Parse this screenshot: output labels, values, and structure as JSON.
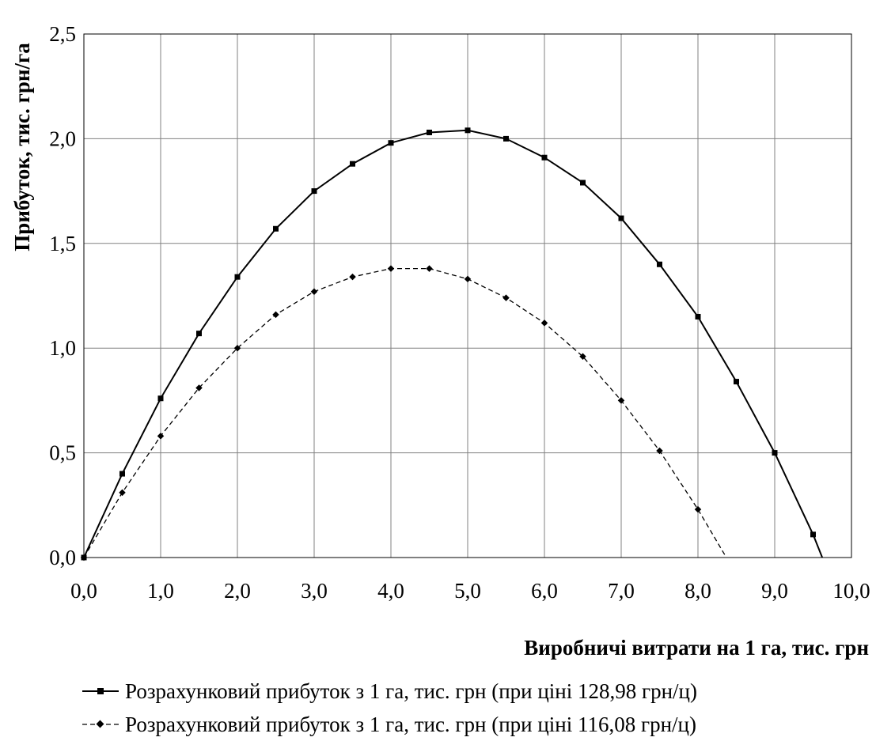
{
  "chart_data": {
    "type": "line",
    "title": "",
    "xlabel": "Виробничі витрати на 1 га, тис. грн",
    "ylabel": "Прибуток, тис. грн/га",
    "xlim": [
      0,
      10
    ],
    "ylim": [
      0,
      2.5
    ],
    "x_ticks": [
      "0,0",
      "1,0",
      "2,0",
      "3,0",
      "4,0",
      "5,0",
      "6,0",
      "7,0",
      "8,0",
      "9,0",
      "10,0"
    ],
    "y_ticks": [
      "0,0",
      "0,5",
      "1,0",
      "1,5",
      "2,0",
      "2,5"
    ],
    "grid": true,
    "legend_position": "bottom",
    "series": [
      {
        "name": "Розрахунковий прибуток з 1 га, тис. грн (при ціні 128,98 грн/ц)",
        "style": "solid",
        "marker": "square",
        "color": "#000000",
        "points": [
          [
            0,
            0
          ],
          [
            0.5,
            0.4
          ],
          [
            1.0,
            0.76
          ],
          [
            1.5,
            1.07
          ],
          [
            2.0,
            1.34
          ],
          [
            2.5,
            1.57
          ],
          [
            3.0,
            1.75
          ],
          [
            3.5,
            1.88
          ],
          [
            4.0,
            1.98
          ],
          [
            4.5,
            2.03
          ],
          [
            5.0,
            2.04
          ],
          [
            5.5,
            2.0
          ],
          [
            6.0,
            1.91
          ],
          [
            6.5,
            1.79
          ],
          [
            7.0,
            1.62
          ],
          [
            7.5,
            1.4
          ],
          [
            8.0,
            1.15
          ],
          [
            8.5,
            0.84
          ],
          [
            9.0,
            0.5
          ],
          [
            9.5,
            0.11
          ]
        ],
        "line_end": [
          9.62,
          0
        ]
      },
      {
        "name": "Розрахунковий прибуток з 1 га, тис. грн (при ціні 116,08 грн/ц)",
        "style": "dashed",
        "marker": "diamond",
        "color": "#000000",
        "points": [
          [
            0,
            0
          ],
          [
            0.5,
            0.31
          ],
          [
            1.0,
            0.58
          ],
          [
            1.5,
            0.81
          ],
          [
            2.0,
            1.0
          ],
          [
            2.5,
            1.16
          ],
          [
            3.0,
            1.27
          ],
          [
            3.5,
            1.34
          ],
          [
            4.0,
            1.38
          ],
          [
            4.5,
            1.38
          ],
          [
            5.0,
            1.33
          ],
          [
            5.5,
            1.24
          ],
          [
            6.0,
            1.12
          ],
          [
            6.5,
            0.96
          ],
          [
            7.0,
            0.75
          ],
          [
            7.5,
            0.51
          ],
          [
            8.0,
            0.23
          ]
        ],
        "line_end": [
          8.37,
          0
        ]
      }
    ]
  }
}
